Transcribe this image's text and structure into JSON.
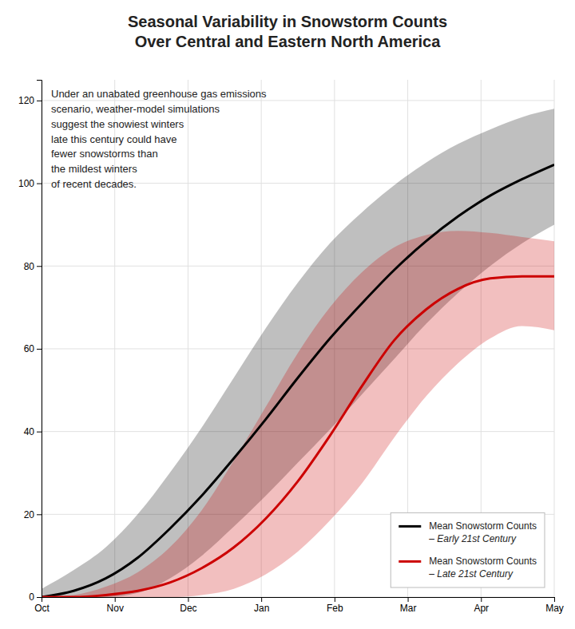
{
  "chart_data": {
    "type": "line",
    "title": "Seasonal Variability in Snowstorm Counts\nOver Central and Eastern North America",
    "annotation": "Under an unabated greenhouse gas emissions\nscenario, weather-model simulations\nsuggest the snowiest winters\nlate this century could have\nfewer snowstorms than\nthe mildest winters\nof recent decades.",
    "x": [
      0,
      0.4375,
      0.875,
      1.3125,
      1.75,
      2.1875,
      2.625,
      3.0625,
      3.5,
      3.9375,
      4.375,
      4.8125,
      5.25,
      5.6875,
      6.125,
      6.5625,
      7
    ],
    "xlim": [
      0,
      7
    ],
    "xticks": [
      {
        "value": 0,
        "label": "Oct"
      },
      {
        "value": 1,
        "label": "Nov"
      },
      {
        "value": 2,
        "label": "Dec"
      },
      {
        "value": 3,
        "label": "Jan"
      },
      {
        "value": 4,
        "label": "Feb"
      },
      {
        "value": 5,
        "label": "Mar"
      },
      {
        "value": 6,
        "label": "Apr"
      },
      {
        "value": 7,
        "label": "May"
      }
    ],
    "ylim": [
      0,
      125
    ],
    "yticks": [
      0,
      20,
      40,
      60,
      80,
      100,
      120
    ],
    "grid": true,
    "legend": "lower right",
    "series": [
      {
        "name": "Mean Snowstorm Counts\n– Early 21st Century",
        "color": "#000000",
        "values": [
          0.0,
          1.5,
          4.5,
          9.5,
          16.5,
          24.5,
          33.5,
          43.0,
          53.0,
          62.5,
          71.0,
          79.0,
          86.0,
          92.0,
          97.0,
          101.0,
          104.5
        ],
        "upper": [
          2.0,
          6.5,
          12.0,
          20.0,
          30.0,
          41.0,
          53.0,
          65.0,
          76.0,
          85.5,
          93.0,
          99.5,
          105.0,
          109.5,
          113.0,
          116.0,
          118.0
        ],
        "lower": [
          0.0,
          0.0,
          0.0,
          1.0,
          4.5,
          10.0,
          17.0,
          24.5,
          32.5,
          40.5,
          49.0,
          57.5,
          66.0,
          73.5,
          80.0,
          85.5,
          90.0
        ]
      },
      {
        "name": "Mean Snowstorm Counts\n– Late 21st Century",
        "color": "#cc0000",
        "values": [
          0.0,
          0.0,
          0.5,
          1.5,
          3.5,
          7.0,
          12.0,
          19.0,
          28.0,
          39.0,
          51.0,
          62.0,
          69.5,
          74.5,
          77.0,
          77.5,
          77.5
        ],
        "upper": [
          0.0,
          0.5,
          2.5,
          6.0,
          12.0,
          21.0,
          33.0,
          46.0,
          59.0,
          70.0,
          78.5,
          84.5,
          87.5,
          88.5,
          88.0,
          87.0,
          86.0
        ],
        "lower": [
          0.0,
          0.0,
          0.0,
          0.0,
          0.0,
          0.5,
          2.0,
          5.5,
          11.0,
          18.5,
          27.5,
          38.5,
          48.5,
          56.5,
          62.5,
          65.5,
          64.5
        ]
      }
    ]
  }
}
